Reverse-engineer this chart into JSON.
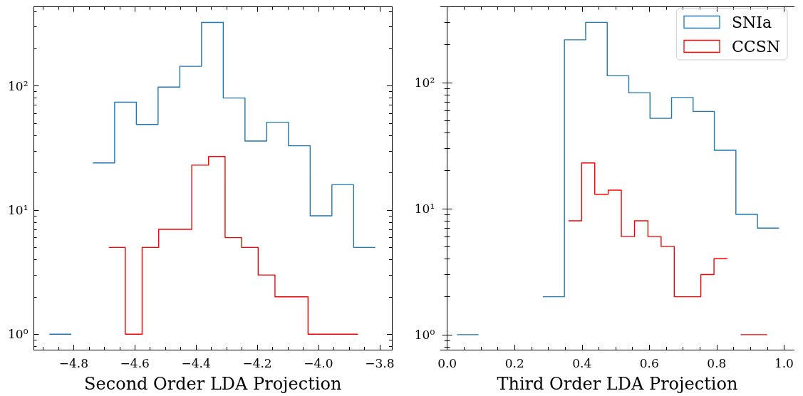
{
  "chart_data": [
    {
      "type": "step",
      "xlabel": "Second Order LDA Projection",
      "log": "y",
      "grid": false,
      "legend": false,
      "xlim": [
        -4.93,
        -3.76
      ],
      "ylim": [
        0.75,
        434
      ],
      "xticks": [
        {
          "value": -4.8,
          "label": "−4.8"
        },
        {
          "value": -4.6,
          "label": "−4.6"
        },
        {
          "value": -4.4,
          "label": "−4.4"
        },
        {
          "value": -4.2,
          "label": "−4.2"
        },
        {
          "value": -4.0,
          "label": "−4.0"
        },
        {
          "value": -3.8,
          "label": "−3.8"
        },
        {
          "value": -4.9,
          "label": null
        },
        {
          "value": -4.85,
          "label": null
        },
        {
          "value": -4.75,
          "label": null
        },
        {
          "value": -4.7,
          "label": null
        },
        {
          "value": -4.65,
          "label": null
        },
        {
          "value": -4.55,
          "label": null
        },
        {
          "value": -4.5,
          "label": null
        },
        {
          "value": -4.45,
          "label": null
        },
        {
          "value": -4.35,
          "label": null
        },
        {
          "value": -4.3,
          "label": null
        },
        {
          "value": -4.25,
          "label": null
        },
        {
          "value": -4.15,
          "label": null
        },
        {
          "value": -4.1,
          "label": null
        },
        {
          "value": -4.05,
          "label": null
        },
        {
          "value": -3.95,
          "label": null
        },
        {
          "value": -3.9,
          "label": null
        },
        {
          "value": -3.85,
          "label": null
        }
      ],
      "yticks": [
        {
          "value": 1,
          "label": "10⁰"
        },
        {
          "value": 10,
          "label": "10¹"
        },
        {
          "value": 100,
          "label": "10²"
        },
        {
          "value": 0.8,
          "label": null
        },
        {
          "value": 0.9,
          "label": null
        },
        {
          "value": 2,
          "label": null
        },
        {
          "value": 3,
          "label": null
        },
        {
          "value": 4,
          "label": null
        },
        {
          "value": 5,
          "label": null
        },
        {
          "value": 6,
          "label": null
        },
        {
          "value": 7,
          "label": null
        },
        {
          "value": 8,
          "label": null
        },
        {
          "value": 9,
          "label": null
        },
        {
          "value": 20,
          "label": null
        },
        {
          "value": 30,
          "label": null
        },
        {
          "value": 40,
          "label": null
        },
        {
          "value": 50,
          "label": null
        },
        {
          "value": 60,
          "label": null
        },
        {
          "value": 70,
          "label": null
        },
        {
          "value": 80,
          "label": null
        },
        {
          "value": 90,
          "label": null
        },
        {
          "value": 200,
          "label": null
        },
        {
          "value": 300,
          "label": null
        },
        {
          "value": 400,
          "label": null
        }
      ],
      "series": [
        {
          "color": "#1f77b4",
          "x": [
            -4.879,
            -4.808,
            -4.737,
            -4.666,
            -4.595,
            -4.524,
            -4.453,
            -4.382,
            -4.311,
            -4.24,
            -4.169,
            -4.098,
            -4.027,
            -3.956,
            -3.885,
            -3.814
          ],
          "values": [
            1,
            null,
            24,
            74,
            49,
            98,
            144,
            325,
            80,
            36,
            51,
            33,
            9,
            16,
            5,
            5
          ]
        },
        {
          "color": "#ff0000",
          "x": [
            -4.685,
            -4.631,
            -4.576,
            -4.522,
            -4.468,
            -4.414,
            -4.359,
            -4.305,
            -4.251,
            -4.197,
            -4.142,
            -4.088,
            -4.034,
            -3.979,
            -3.925,
            -3.871
          ],
          "values": [
            5,
            1,
            5,
            7,
            7,
            23,
            27,
            6,
            5,
            3,
            2,
            2,
            1,
            1,
            1,
            1
          ]
        }
      ]
    },
    {
      "type": "step",
      "xlabel": "Third Order LDA Projection",
      "log": "y",
      "grid": false,
      "legend": "top right",
      "xlim": [
        -0.02,
        1.03
      ],
      "ylim": [
        0.76,
        398
      ],
      "xticks": [
        {
          "value": 0,
          "label": "0.0"
        },
        {
          "value": 0.2,
          "label": "0.2"
        },
        {
          "value": 0.4,
          "label": "0.4"
        },
        {
          "value": 0.6,
          "label": "0.6"
        },
        {
          "value": 0.8,
          "label": "0.8"
        },
        {
          "value": 1,
          "label": "1.0"
        },
        {
          "value": 0.05,
          "label": null
        },
        {
          "value": 0.1,
          "label": null
        },
        {
          "value": 0.15,
          "label": null
        },
        {
          "value": 0.25,
          "label": null
        },
        {
          "value": 0.3,
          "label": null
        },
        {
          "value": 0.35,
          "label": null
        },
        {
          "value": 0.45,
          "label": null
        },
        {
          "value": 0.5,
          "label": null
        },
        {
          "value": 0.55,
          "label": null
        },
        {
          "value": 0.65,
          "label": null
        },
        {
          "value": 0.7,
          "label": null
        },
        {
          "value": 0.75,
          "label": null
        },
        {
          "value": 0.85,
          "label": null
        },
        {
          "value": 0.9,
          "label": null
        },
        {
          "value": 0.95,
          "label": null
        }
      ],
      "yticks": [
        {
          "value": 1,
          "label": "10⁰"
        },
        {
          "value": 10,
          "label": "10¹"
        },
        {
          "value": 100,
          "label": "10²"
        },
        {
          "value": 0.8,
          "label": null
        },
        {
          "value": 0.9,
          "label": null
        },
        {
          "value": 2,
          "label": null
        },
        {
          "value": 3,
          "label": null
        },
        {
          "value": 4,
          "label": null
        },
        {
          "value": 5,
          "label": null
        },
        {
          "value": 6,
          "label": null
        },
        {
          "value": 7,
          "label": null
        },
        {
          "value": 8,
          "label": null
        },
        {
          "value": 9,
          "label": null
        },
        {
          "value": 20,
          "label": null
        },
        {
          "value": 30,
          "label": null
        },
        {
          "value": 40,
          "label": null
        },
        {
          "value": 50,
          "label": null
        },
        {
          "value": 60,
          "label": null
        },
        {
          "value": 70,
          "label": null
        },
        {
          "value": 80,
          "label": null
        },
        {
          "value": 90,
          "label": null
        },
        {
          "value": 200,
          "label": null
        },
        {
          "value": 300,
          "label": null
        }
      ],
      "series": [
        {
          "name": "SNIa",
          "color": "#1f77b4",
          "x": [
            0.029,
            0.093,
            0.284,
            0.348,
            0.411,
            0.475,
            0.539,
            0.602,
            0.666,
            0.73,
            0.793,
            0.857,
            0.921,
            0.985
          ],
          "values": [
            1,
            null,
            2,
            218,
            300,
            113,
            83,
            52,
            76,
            59,
            29,
            9,
            7,
            7
          ]
        },
        {
          "name": "CCSN",
          "color": "#ff0000",
          "x": [
            0.36,
            0.399,
            0.438,
            0.478,
            0.517,
            0.556,
            0.596,
            0.635,
            0.674,
            0.714,
            0.753,
            0.792,
            0.832,
            0.871,
            0.91,
            0.95
          ],
          "values": [
            8,
            23,
            13,
            14,
            6,
            8,
            6,
            5,
            2,
            2,
            3,
            4,
            null,
            1,
            1,
            1
          ]
        }
      ]
    }
  ]
}
